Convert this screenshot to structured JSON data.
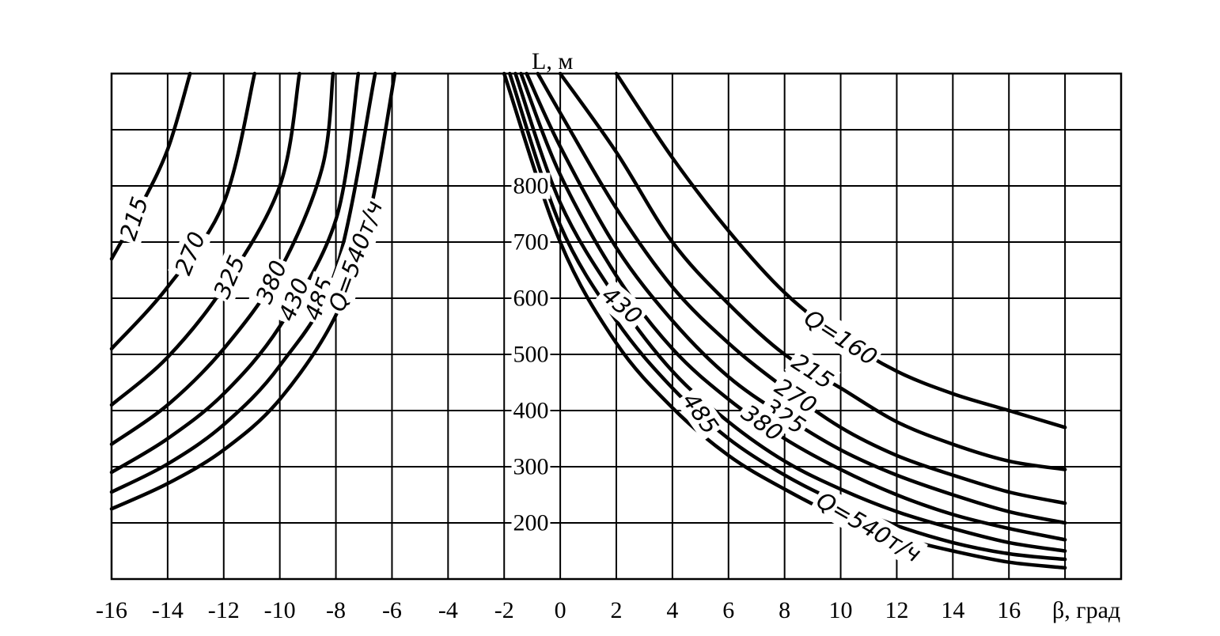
{
  "chart_data": {
    "type": "line",
    "title": "",
    "xlabel": "β, град",
    "ylabel": "L, м",
    "xlim": [
      -16,
      20
    ],
    "ylim": [
      100,
      1000
    ],
    "grid": true,
    "x_ticks": [
      -16,
      -14,
      -12,
      -10,
      -8,
      -6,
      -4,
      -2,
      0,
      2,
      4,
      6,
      8,
      10,
      12,
      14,
      16
    ],
    "x_tick_labels": [
      "-16",
      "-14",
      "-12",
      "-10",
      "-8",
      "-6",
      "-4",
      "-2",
      "0",
      "2",
      "4",
      "6",
      "8",
      "10",
      "12",
      "14",
      "16"
    ],
    "y_ticks": [
      200,
      300,
      400,
      500,
      600,
      700,
      800
    ],
    "y_tick_labels": [
      "200",
      "300",
      "400",
      "500",
      "600",
      "700",
      "800"
    ],
    "series": [
      {
        "name": "215",
        "label": "215",
        "branch": "negative",
        "points": [
          [
            -16,
            670
          ],
          [
            -15,
            760
          ],
          [
            -14,
            865
          ],
          [
            -13.2,
            1000
          ]
        ]
      },
      {
        "name": "270",
        "label": "270",
        "branch": "negative",
        "points": [
          [
            -16,
            510
          ],
          [
            -14,
            620
          ],
          [
            -12,
            770
          ],
          [
            -10.9,
            1000
          ]
        ]
      },
      {
        "name": "325",
        "label": "325",
        "branch": "negative",
        "points": [
          [
            -16,
            410
          ],
          [
            -14,
            495
          ],
          [
            -12,
            620
          ],
          [
            -10,
            800
          ],
          [
            -9.3,
            1000
          ]
        ]
      },
      {
        "name": "380",
        "label": "380",
        "branch": "negative",
        "points": [
          [
            -16,
            340
          ],
          [
            -14,
            410
          ],
          [
            -12,
            510
          ],
          [
            -10,
            650
          ],
          [
            -8.5,
            830
          ],
          [
            -8.1,
            1000
          ]
        ]
      },
      {
        "name": "430",
        "label": "430",
        "branch": "negative",
        "points": [
          [
            -16,
            290
          ],
          [
            -14,
            350
          ],
          [
            -12,
            430
          ],
          [
            -10,
            550
          ],
          [
            -8,
            740
          ],
          [
            -7.2,
            1000
          ]
        ]
      },
      {
        "name": "485",
        "label": "485",
        "branch": "negative",
        "points": [
          [
            -16,
            255
          ],
          [
            -14,
            305
          ],
          [
            -12,
            375
          ],
          [
            -10,
            480
          ],
          [
            -8,
            650
          ],
          [
            -6.6,
            1000
          ]
        ]
      },
      {
        "name": "540",
        "label": "Q=540т/ч",
        "branch": "negative",
        "points": [
          [
            -16,
            225
          ],
          [
            -14,
            270
          ],
          [
            -12,
            330
          ],
          [
            -10,
            420
          ],
          [
            -8,
            570
          ],
          [
            -6.8,
            750
          ],
          [
            -5.9,
            1000
          ]
        ]
      },
      {
        "name": "160",
        "label": "Q=160",
        "branch": "positive",
        "points": [
          [
            2,
            1000
          ],
          [
            4,
            850
          ],
          [
            6,
            720
          ],
          [
            8,
            610
          ],
          [
            10,
            530
          ],
          [
            12,
            470
          ],
          [
            14,
            430
          ],
          [
            16,
            400
          ],
          [
            18,
            370
          ]
        ]
      },
      {
        "name": "215",
        "label": "215",
        "branch": "positive",
        "points": [
          [
            0,
            1000
          ],
          [
            2,
            860
          ],
          [
            4,
            700
          ],
          [
            6,
            590
          ],
          [
            8,
            500
          ],
          [
            10,
            440
          ],
          [
            12,
            380
          ],
          [
            14,
            340
          ],
          [
            16,
            310
          ],
          [
            18,
            295
          ]
        ]
      },
      {
        "name": "270",
        "label": "270",
        "branch": "positive",
        "points": [
          [
            -0.8,
            1000
          ],
          [
            0,
            930
          ],
          [
            2,
            760
          ],
          [
            4,
            620
          ],
          [
            6,
            520
          ],
          [
            8,
            440
          ],
          [
            10,
            370
          ],
          [
            12,
            320
          ],
          [
            14,
            285
          ],
          [
            16,
            255
          ],
          [
            18,
            235
          ]
        ]
      },
      {
        "name": "325",
        "label": "325",
        "branch": "positive",
        "points": [
          [
            -1.2,
            1000
          ],
          [
            0,
            870
          ],
          [
            2,
            690
          ],
          [
            4,
            560
          ],
          [
            6,
            460
          ],
          [
            8,
            390
          ],
          [
            10,
            330
          ],
          [
            12,
            285
          ],
          [
            14,
            250
          ],
          [
            16,
            220
          ],
          [
            18,
            200
          ]
        ]
      },
      {
        "name": "380",
        "label": "380",
        "branch": "positive",
        "points": [
          [
            -1.4,
            1000
          ],
          [
            0,
            820
          ],
          [
            2,
            640
          ],
          [
            4,
            510
          ],
          [
            6,
            420
          ],
          [
            8,
            350
          ],
          [
            10,
            295
          ],
          [
            12,
            250
          ],
          [
            14,
            215
          ],
          [
            16,
            190
          ],
          [
            18,
            170
          ]
        ]
      },
      {
        "name": "430",
        "label": "430",
        "branch": "positive",
        "points": [
          [
            -1.6,
            1000
          ],
          [
            0,
            770
          ],
          [
            2,
            600
          ],
          [
            4,
            470
          ],
          [
            6,
            380
          ],
          [
            8,
            310
          ],
          [
            10,
            260
          ],
          [
            12,
            220
          ],
          [
            14,
            190
          ],
          [
            16,
            165
          ],
          [
            18,
            150
          ]
        ]
      },
      {
        "name": "485",
        "label": "485",
        "branch": "positive",
        "points": [
          [
            -1.8,
            1000
          ],
          [
            0,
            730
          ],
          [
            2,
            560
          ],
          [
            4,
            440
          ],
          [
            6,
            350
          ],
          [
            8,
            285
          ],
          [
            10,
            235
          ],
          [
            12,
            195
          ],
          [
            14,
            165
          ],
          [
            16,
            145
          ],
          [
            18,
            135
          ]
        ]
      },
      {
        "name": "540",
        "label": "Q=540т/ч",
        "branch": "positive",
        "points": [
          [
            -2,
            1000
          ],
          [
            0,
            700
          ],
          [
            2,
            520
          ],
          [
            4,
            405
          ],
          [
            6,
            320
          ],
          [
            8,
            260
          ],
          [
            10,
            210
          ],
          [
            12,
            175
          ],
          [
            14,
            150
          ],
          [
            16,
            130
          ],
          [
            18,
            120
          ]
        ]
      }
    ]
  }
}
